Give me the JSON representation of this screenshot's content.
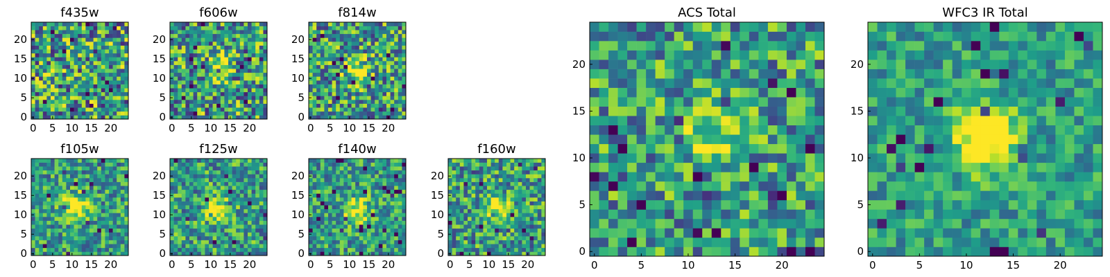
{
  "chart_data": [
    {
      "type": "heatmap",
      "title": "f435w",
      "xlim": [
        0,
        25
      ],
      "ylim": [
        0,
        25
      ],
      "xticks": [
        0,
        5,
        10,
        15,
        20
      ],
      "yticks": [
        0,
        5,
        10,
        15,
        20
      ],
      "grid_size": 25,
      "colormap": "viridis",
      "source_peak": null,
      "peak_strength": 0,
      "noise_level": 0.9,
      "seed": 11
    },
    {
      "type": "heatmap",
      "title": "f606w",
      "xlim": [
        0,
        25
      ],
      "ylim": [
        0,
        25
      ],
      "xticks": [
        0,
        5,
        10,
        15,
        20
      ],
      "yticks": [
        0,
        5,
        10,
        15,
        20
      ],
      "grid_size": 25,
      "colormap": "viridis",
      "source_peak": [
        12,
        13
      ],
      "peak_strength": 0.35,
      "noise_level": 0.85,
      "seed": 23
    },
    {
      "type": "heatmap",
      "title": "f814w",
      "xlim": [
        0,
        25
      ],
      "ylim": [
        0,
        25
      ],
      "xticks": [
        0,
        5,
        10,
        15,
        20
      ],
      "yticks": [
        0,
        5,
        10,
        15,
        20
      ],
      "grid_size": 25,
      "colormap": "viridis",
      "source_peak": [
        12,
        12
      ],
      "peak_strength": 0.45,
      "noise_level": 0.8,
      "seed": 37
    },
    {
      "type": "heatmap",
      "title": "f105w",
      "xlim": [
        0,
        25
      ],
      "ylim": [
        0,
        25
      ],
      "xticks": [
        0,
        5,
        10,
        15,
        20
      ],
      "yticks": [
        0,
        5,
        10,
        15,
        20
      ],
      "grid_size": 25,
      "colormap": "viridis",
      "source_peak": [
        11,
        12
      ],
      "peak_strength": 0.6,
      "noise_level": 0.6,
      "seed": 41
    },
    {
      "type": "heatmap",
      "title": "f125w",
      "xlim": [
        0,
        25
      ],
      "ylim": [
        0,
        25
      ],
      "xticks": [
        0,
        5,
        10,
        15,
        20
      ],
      "yticks": [
        0,
        5,
        10,
        15,
        20
      ],
      "grid_size": 25,
      "colormap": "viridis",
      "source_peak": [
        12,
        11
      ],
      "peak_strength": 0.55,
      "noise_level": 0.65,
      "seed": 53
    },
    {
      "type": "heatmap",
      "title": "f140w",
      "xlim": [
        0,
        25
      ],
      "ylim": [
        0,
        25
      ],
      "xticks": [
        0,
        5,
        10,
        15,
        20
      ],
      "yticks": [
        0,
        5,
        10,
        15,
        20
      ],
      "grid_size": 25,
      "colormap": "viridis",
      "source_peak": [
        12,
        11
      ],
      "peak_strength": 0.5,
      "noise_level": 0.6,
      "seed": 67
    },
    {
      "type": "heatmap",
      "title": "f160w",
      "xlim": [
        0,
        25
      ],
      "ylim": [
        0,
        25
      ],
      "xticks": [
        0,
        5,
        10,
        15,
        20
      ],
      "yticks": [
        0,
        5,
        10,
        15,
        20
      ],
      "grid_size": 25,
      "colormap": "viridis",
      "source_peak": [
        12,
        12
      ],
      "peak_strength": 0.5,
      "noise_level": 0.7,
      "seed": 79
    },
    {
      "type": "heatmap",
      "title": "ACS Total",
      "xlim": [
        0,
        25
      ],
      "ylim": [
        0,
        25
      ],
      "xticks": [
        0,
        5,
        10,
        15,
        20
      ],
      "yticks": [
        0,
        5,
        10,
        15,
        20
      ],
      "grid_size": 25,
      "colormap": "viridis",
      "source_peak": [
        12,
        13
      ],
      "peak_strength": 0.3,
      "noise_level": 0.7,
      "seed": 83
    },
    {
      "type": "heatmap",
      "title": "WFC3 IR Total",
      "xlim": [
        0,
        25
      ],
      "ylim": [
        0,
        25
      ],
      "xticks": [
        0,
        5,
        10,
        15,
        20
      ],
      "yticks": [
        0,
        5,
        10,
        15,
        20
      ],
      "grid_size": 25,
      "colormap": "viridis",
      "source_peak": [
        12,
        12
      ],
      "peak_strength": 0.75,
      "noise_level": 0.45,
      "seed": 97
    }
  ]
}
